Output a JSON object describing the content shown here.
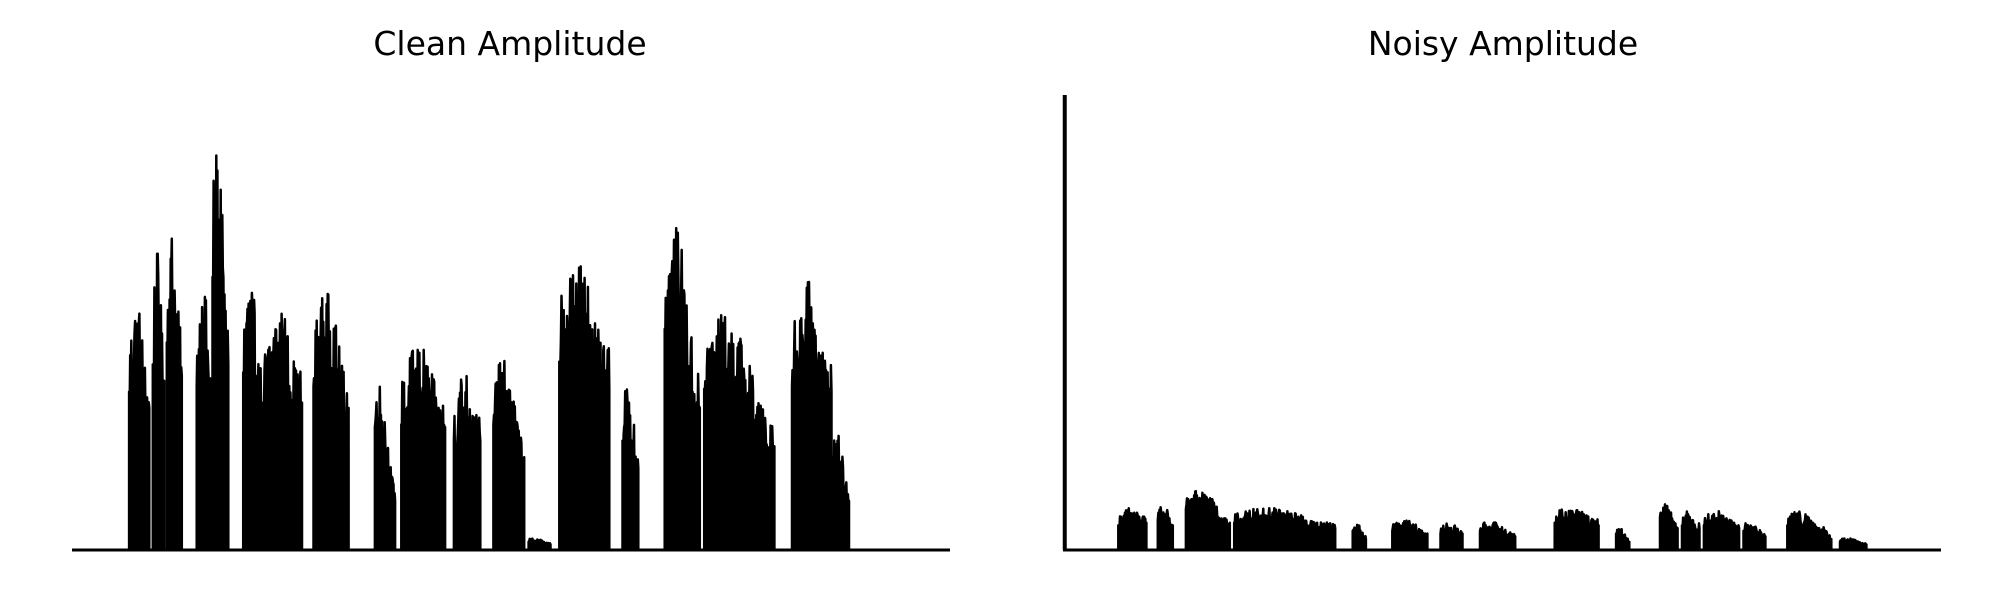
{
  "chart_data": [
    {
      "type": "area",
      "title": "Clean Amplitude",
      "xlabel": "",
      "ylabel": "",
      "axes_visible": false,
      "grid": false,
      "color": "#000000",
      "xlim": [
        0,
        1000
      ],
      "ylim": [
        0,
        1.0
      ],
      "segments": [
        {
          "x": [
            65,
            88
          ],
          "y": [
            0.58,
            0.52
          ]
        },
        {
          "x": [
            92,
            105
          ],
          "y": [
            0.68,
            0.62
          ]
        },
        {
          "x": [
            108,
            125
          ],
          "y": [
            0.76,
            0.64
          ]
        },
        {
          "x": [
            142,
            160
          ],
          "y": [
            0.6,
            0.58
          ]
        },
        {
          "x": [
            160,
            178
          ],
          "y": [
            1.0,
            0.68
          ]
        },
        {
          "x": [
            195,
            216
          ],
          "y": [
            0.65,
            0.54
          ]
        },
        {
          "x": [
            218,
            262
          ],
          "y": [
            0.54,
            0.54
          ]
        },
        {
          "x": [
            275,
            315
          ],
          "y": [
            0.6,
            0.52
          ]
        },
        {
          "x": [
            345,
            368
          ],
          "y": [
            0.45,
            0.18
          ]
        },
        {
          "x": [
            375,
            425
          ],
          "y": [
            0.46,
            0.45
          ]
        },
        {
          "x": [
            435,
            465
          ],
          "y": [
            0.4,
            0.4
          ]
        },
        {
          "x": [
            480,
            515
          ],
          "y": [
            0.46,
            0.34
          ]
        },
        {
          "x": [
            520,
            545
          ],
          "y": [
            0.03,
            0.02
          ]
        },
        {
          "x": [
            555,
            612
          ],
          "y": [
            0.69,
            0.59
          ]
        },
        {
          "x": [
            627,
            645
          ],
          "y": [
            0.4,
            0.3
          ]
        },
        {
          "x": [
            675,
            715
          ],
          "y": [
            0.81,
            0.52
          ]
        },
        {
          "x": [
            720,
            800
          ],
          "y": [
            0.59,
            0.38
          ]
        },
        {
          "x": [
            820,
            865
          ],
          "y": [
            0.6,
            0.58
          ]
        },
        {
          "x": [
            865,
            885
          ],
          "y": [
            0.3,
            0.18
          ]
        }
      ]
    },
    {
      "type": "area",
      "title": "Noisy Amplitude",
      "xlabel": "",
      "ylabel": "",
      "axes_visible": false,
      "grid": false,
      "color": "#000000",
      "xlim": [
        0,
        1000
      ],
      "ylim": [
        0,
        1.0
      ],
      "spike": {
        "x": 2,
        "y": 1.0
      },
      "segments": [
        {
          "x": [
            63,
            95
          ],
          "y": [
            0.09,
            0.1
          ]
        },
        {
          "x": [
            108,
            125
          ],
          "y": [
            0.11,
            0.09
          ]
        },
        {
          "x": [
            140,
            190
          ],
          "y": [
            0.15,
            0.1
          ]
        },
        {
          "x": [
            195,
            310
          ],
          "y": [
            0.1,
            0.08
          ]
        },
        {
          "x": [
            330,
            345
          ],
          "y": [
            0.07,
            0.04
          ]
        },
        {
          "x": [
            375,
            415
          ],
          "y": [
            0.07,
            0.06
          ]
        },
        {
          "x": [
            430,
            455
          ],
          "y": [
            0.06,
            0.06
          ]
        },
        {
          "x": [
            475,
            515
          ],
          "y": [
            0.07,
            0.05
          ]
        },
        {
          "x": [
            560,
            610
          ],
          "y": [
            0.1,
            0.09
          ]
        },
        {
          "x": [
            630,
            645
          ],
          "y": [
            0.06,
            0.03
          ]
        },
        {
          "x": [
            680,
            700
          ],
          "y": [
            0.12,
            0.08
          ]
        },
        {
          "x": [
            705,
            725
          ],
          "y": [
            0.09,
            0.08
          ]
        },
        {
          "x": [
            730,
            770
          ],
          "y": [
            0.09,
            0.08
          ]
        },
        {
          "x": [
            775,
            800
          ],
          "y": [
            0.07,
            0.05
          ]
        },
        {
          "x": [
            825,
            860
          ],
          "y": [
            0.09,
            0.08
          ]
        },
        {
          "x": [
            860,
            875
          ],
          "y": [
            0.07,
            0.04
          ]
        },
        {
          "x": [
            885,
            915
          ],
          "y": [
            0.03,
            0.02
          ]
        }
      ]
    }
  ]
}
